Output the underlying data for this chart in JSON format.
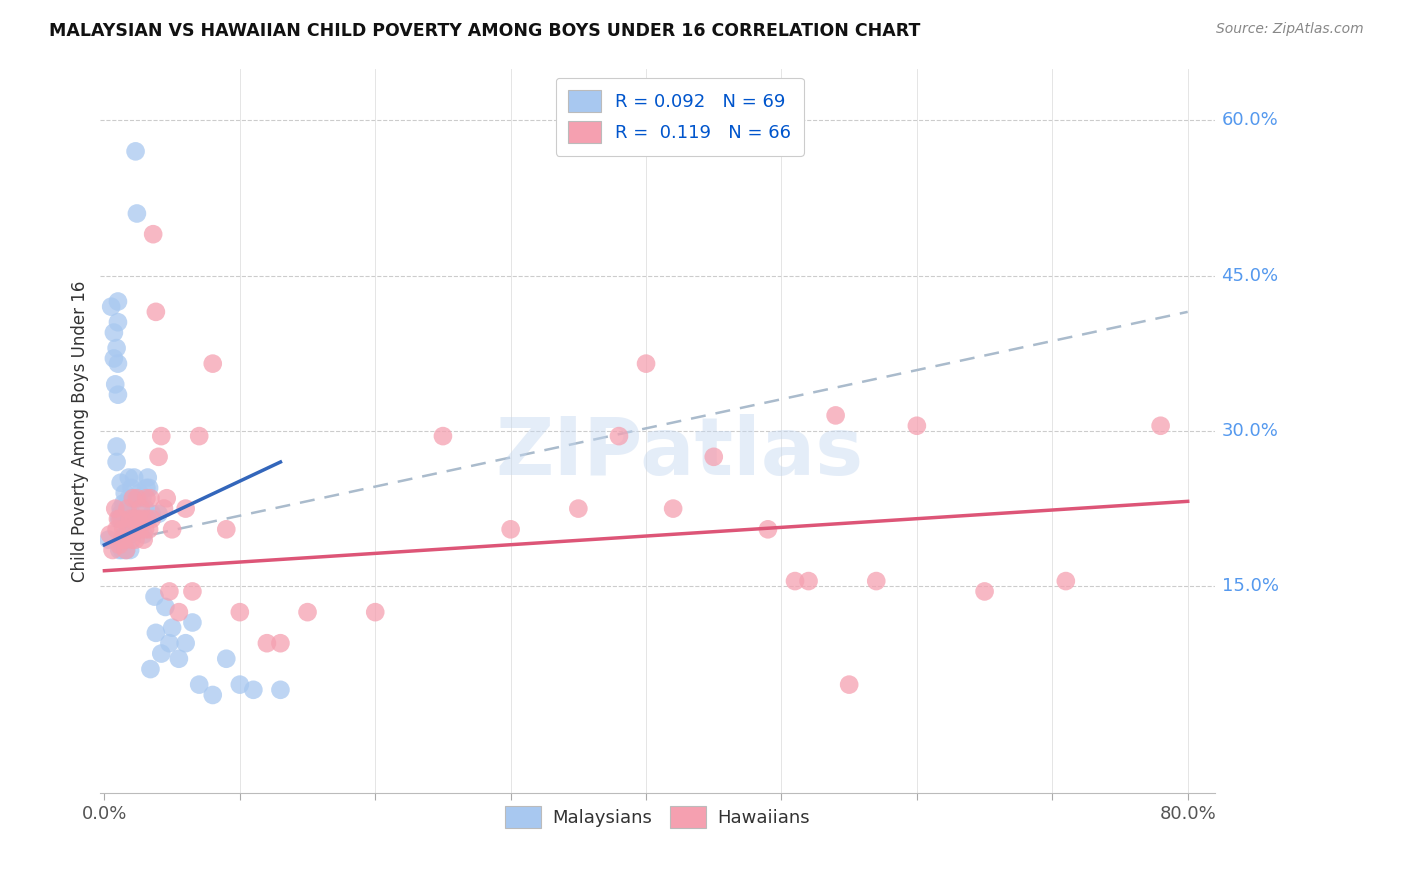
{
  "title": "MALAYSIAN VS HAWAIIAN CHILD POVERTY AMONG BOYS UNDER 16 CORRELATION CHART",
  "source": "Source: ZipAtlas.com",
  "ylabel": "Child Poverty Among Boys Under 16",
  "xlim": [
    0.0,
    0.8
  ],
  "ylim": [
    -0.05,
    0.65
  ],
  "malaysian_color": "#a8c8f0",
  "hawaiian_color": "#f5a0b0",
  "malaysian_line_color": "#3366bb",
  "hawaiian_line_color": "#dd5577",
  "trendline_dashed_color": "#aabbcc",
  "R_malaysian": 0.092,
  "N_malaysian": 69,
  "R_hawaiian": 0.119,
  "N_hawaiian": 66,
  "legend_label_malaysian": "Malaysians",
  "legend_label_hawaiian": "Hawaiians",
  "watermark": "ZIPatlas",
  "mal_line_x0": 0.0,
  "mal_line_y0": 0.19,
  "mal_line_x1": 0.13,
  "mal_line_y1": 0.27,
  "haw_line_x0": 0.0,
  "haw_line_y0": 0.165,
  "haw_line_x1": 0.8,
  "haw_line_y1": 0.232,
  "dash_line_x0": 0.0,
  "dash_line_y0": 0.19,
  "dash_line_x1": 0.8,
  "dash_line_y1": 0.415,
  "malaysian_x": [
    0.003,
    0.005,
    0.007,
    0.007,
    0.008,
    0.009,
    0.009,
    0.009,
    0.01,
    0.01,
    0.01,
    0.01,
    0.011,
    0.011,
    0.012,
    0.012,
    0.012,
    0.013,
    0.013,
    0.013,
    0.014,
    0.014,
    0.014,
    0.015,
    0.015,
    0.015,
    0.016,
    0.016,
    0.017,
    0.017,
    0.018,
    0.018,
    0.019,
    0.019,
    0.02,
    0.02,
    0.021,
    0.021,
    0.022,
    0.022,
    0.023,
    0.024,
    0.025,
    0.026,
    0.027,
    0.028,
    0.029,
    0.03,
    0.031,
    0.032,
    0.033,
    0.034,
    0.035,
    0.037,
    0.038,
    0.04,
    0.042,
    0.045,
    0.048,
    0.05,
    0.055,
    0.06,
    0.065,
    0.07,
    0.08,
    0.09,
    0.1,
    0.11,
    0.13
  ],
  "malaysian_y": [
    0.195,
    0.42,
    0.395,
    0.37,
    0.345,
    0.285,
    0.27,
    0.38,
    0.365,
    0.335,
    0.425,
    0.405,
    0.215,
    0.185,
    0.25,
    0.225,
    0.22,
    0.215,
    0.19,
    0.185,
    0.23,
    0.215,
    0.195,
    0.24,
    0.22,
    0.2,
    0.2,
    0.185,
    0.22,
    0.215,
    0.255,
    0.235,
    0.2,
    0.185,
    0.245,
    0.22,
    0.235,
    0.205,
    0.255,
    0.235,
    0.57,
    0.51,
    0.235,
    0.24,
    0.21,
    0.235,
    0.2,
    0.225,
    0.245,
    0.255,
    0.245,
    0.07,
    0.22,
    0.14,
    0.105,
    0.22,
    0.085,
    0.13,
    0.095,
    0.11,
    0.08,
    0.095,
    0.115,
    0.055,
    0.045,
    0.08,
    0.055,
    0.05,
    0.05
  ],
  "hawaiian_x": [
    0.004,
    0.006,
    0.008,
    0.009,
    0.01,
    0.011,
    0.012,
    0.013,
    0.014,
    0.015,
    0.016,
    0.017,
    0.018,
    0.019,
    0.02,
    0.021,
    0.022,
    0.023,
    0.024,
    0.025,
    0.026,
    0.027,
    0.028,
    0.029,
    0.03,
    0.031,
    0.032,
    0.033,
    0.034,
    0.035,
    0.036,
    0.038,
    0.04,
    0.042,
    0.044,
    0.046,
    0.048,
    0.05,
    0.055,
    0.06,
    0.065,
    0.07,
    0.08,
    0.09,
    0.1,
    0.12,
    0.13,
    0.15,
    0.2,
    0.25,
    0.3,
    0.35,
    0.38,
    0.4,
    0.42,
    0.45,
    0.49,
    0.51,
    0.52,
    0.54,
    0.55,
    0.57,
    0.6,
    0.65,
    0.71,
    0.78
  ],
  "hawaiian_y": [
    0.2,
    0.185,
    0.225,
    0.205,
    0.215,
    0.19,
    0.215,
    0.195,
    0.205,
    0.195,
    0.185,
    0.225,
    0.205,
    0.215,
    0.195,
    0.235,
    0.215,
    0.195,
    0.235,
    0.215,
    0.205,
    0.225,
    0.215,
    0.195,
    0.205,
    0.235,
    0.215,
    0.205,
    0.235,
    0.215,
    0.49,
    0.415,
    0.275,
    0.295,
    0.225,
    0.235,
    0.145,
    0.205,
    0.125,
    0.225,
    0.145,
    0.295,
    0.365,
    0.205,
    0.125,
    0.095,
    0.095,
    0.125,
    0.125,
    0.295,
    0.205,
    0.225,
    0.295,
    0.365,
    0.225,
    0.275,
    0.205,
    0.155,
    0.155,
    0.315,
    0.055,
    0.155,
    0.305,
    0.145,
    0.155,
    0.305
  ]
}
